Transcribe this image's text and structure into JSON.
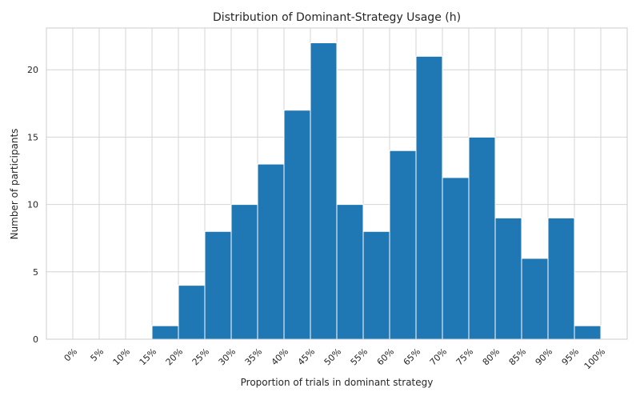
{
  "chart_data": {
    "type": "bar",
    "title": "Distribution of Dominant-Strategy Usage (h)",
    "xlabel": "Proportion of trials in dominant strategy",
    "ylabel": "Number of participants",
    "x_tick_labels": [
      "0%",
      "5%",
      "10%",
      "15%",
      "20%",
      "25%",
      "30%",
      "35%",
      "40%",
      "45%",
      "50%",
      "55%",
      "60%",
      "65%",
      "70%",
      "75%",
      "80%",
      "85%",
      "90%",
      "95%",
      "100%"
    ],
    "bin_edges": [
      0,
      5,
      10,
      15,
      20,
      25,
      30,
      35,
      40,
      45,
      50,
      55,
      60,
      65,
      70,
      75,
      80,
      85,
      90,
      95,
      100
    ],
    "values": [
      0,
      0,
      0,
      1,
      4,
      8,
      10,
      13,
      17,
      22,
      10,
      8,
      14,
      21,
      12,
      15,
      9,
      6,
      9,
      1
    ],
    "y_ticks": [
      0,
      5,
      10,
      15,
      20
    ],
    "xlim": [
      -5,
      105
    ],
    "ylim": [
      0,
      23.1
    ],
    "grid": true,
    "bar_color": "#1f77b4"
  }
}
